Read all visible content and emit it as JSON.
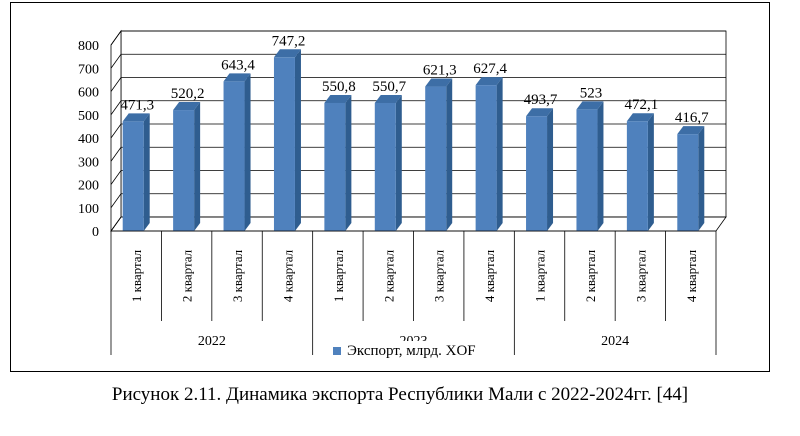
{
  "caption": "Рисунок 2.11. Динамика экспорта Республики Мали с 2022-2024гг. [44]",
  "chart_data": {
    "type": "bar",
    "title": "",
    "xlabel": "",
    "ylabel": "",
    "ylim": [
      0,
      800
    ],
    "yticks": [
      0,
      100,
      200,
      300,
      400,
      500,
      600,
      700,
      800
    ],
    "grid": true,
    "three_d": true,
    "legend_position": "bottom",
    "bar_color": "#4f81bd",
    "categories": [
      "1 квартал",
      "2 квартал",
      "3 квартал",
      "4 квартал",
      "1 квартал",
      "2 квартал",
      "3 квартал",
      "4 квартал",
      "1 квартал",
      "2 квартал",
      "3 квартал",
      "4 квартал"
    ],
    "groups": [
      {
        "label": "2022",
        "count": 4
      },
      {
        "label": "2023",
        "count": 4
      },
      {
        "label": "2024",
        "count": 4
      }
    ],
    "series": [
      {
        "name": "Экспорт, млрд. XOF",
        "values": [
          471.3,
          520.2,
          643.4,
          747.2,
          550.8,
          550.7,
          621.3,
          627.4,
          493.7,
          523,
          472.1,
          416.7
        ],
        "labels": [
          "471,3",
          "520,2",
          "643,4",
          "747,2",
          "550,8",
          "550,7",
          "621,3",
          "627,4",
          "493,7",
          "523",
          "472,1",
          "416,7"
        ]
      }
    ]
  }
}
